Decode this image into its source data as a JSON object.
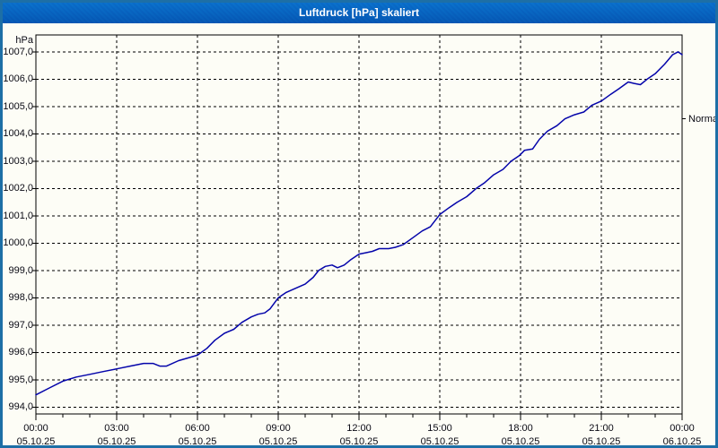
{
  "window": {
    "title": "Luftdruck [hPa] skaliert",
    "colors": {
      "title_bar": "#1d6fa6",
      "title_text": "#ffffff",
      "frame": "#1d6fa6",
      "background": "#fdfdf6",
      "plot_border": "#000000",
      "grid": "#000000"
    }
  },
  "chart_data": {
    "type": "line",
    "title": "Luftdruck [hPa] skaliert",
    "ylabel_unit": "hPa",
    "line_color": "#0404aa",
    "grid": "dashed",
    "ylim": [
      993.75,
      1007.62
    ],
    "xlim_hours": [
      0,
      24
    ],
    "minor_tick_every_hours": 1,
    "y_ticks": [
      {
        "value": 1007.0,
        "label": "1007,0"
      },
      {
        "value": 1006.0,
        "label": "1006,0"
      },
      {
        "value": 1005.0,
        "label": "1005,0"
      },
      {
        "value": 1004.0,
        "label": "1004,0"
      },
      {
        "value": 1003.0,
        "label": "1003,0"
      },
      {
        "value": 1002.0,
        "label": "1002,0"
      },
      {
        "value": 1001.0,
        "label": "1001,0"
      },
      {
        "value": 1000.0,
        "label": "1000,0"
      },
      {
        "value": 999.0,
        "label": "999,0"
      },
      {
        "value": 998.0,
        "label": "998,0"
      },
      {
        "value": 997.0,
        "label": "997,0"
      },
      {
        "value": 996.0,
        "label": "996,0"
      },
      {
        "value": 995.0,
        "label": "995,0"
      },
      {
        "value": 994.0,
        "label": "994,0"
      }
    ],
    "x_ticks": [
      {
        "hour": 0,
        "time": "00:00",
        "date": "05.10.25"
      },
      {
        "hour": 3,
        "time": "03:00",
        "date": "05.10.25"
      },
      {
        "hour": 6,
        "time": "06:00",
        "date": "05.10.25"
      },
      {
        "hour": 9,
        "time": "09:00",
        "date": "05.10.25"
      },
      {
        "hour": 12,
        "time": "12:00",
        "date": "05.10.25"
      },
      {
        "hour": 15,
        "time": "15:00",
        "date": "05.10.25"
      },
      {
        "hour": 18,
        "time": "18:00",
        "date": "05.10.25"
      },
      {
        "hour": 21,
        "time": "21:00",
        "date": "05.10.25"
      },
      {
        "hour": 24,
        "time": "00:00",
        "date": "06.10.25"
      }
    ],
    "annotation": {
      "label": "Normal",
      "value": 1004.55
    },
    "series": [
      {
        "name": "Luftdruck",
        "points": [
          [
            0,
            994.45
          ],
          [
            0.5,
            994.7
          ],
          [
            1,
            994.95
          ],
          [
            1.5,
            995.1
          ],
          [
            2,
            995.2
          ],
          [
            2.5,
            995.3
          ],
          [
            3,
            995.4
          ],
          [
            3.5,
            995.5
          ],
          [
            4,
            995.6
          ],
          [
            4.35,
            995.6
          ],
          [
            4.6,
            995.5
          ],
          [
            4.85,
            995.5
          ],
          [
            5.3,
            995.7
          ],
          [
            5.65,
            995.8
          ],
          [
            6,
            995.9
          ],
          [
            6.35,
            996.15
          ],
          [
            6.65,
            996.45
          ],
          [
            7,
            996.7
          ],
          [
            7.35,
            996.85
          ],
          [
            7.65,
            997.1
          ],
          [
            8,
            997.3
          ],
          [
            8.25,
            997.4
          ],
          [
            8.5,
            997.45
          ],
          [
            8.7,
            997.6
          ],
          [
            9,
            998.0
          ],
          [
            9.3,
            998.2
          ],
          [
            9.65,
            998.35
          ],
          [
            10,
            998.5
          ],
          [
            10.3,
            998.75
          ],
          [
            10.5,
            999.0
          ],
          [
            10.75,
            999.15
          ],
          [
            11,
            999.2
          ],
          [
            11.2,
            999.1
          ],
          [
            11.45,
            999.2
          ],
          [
            11.7,
            999.4
          ],
          [
            12,
            999.6
          ],
          [
            12.25,
            999.65
          ],
          [
            12.5,
            999.7
          ],
          [
            12.75,
            999.8
          ],
          [
            13.1,
            999.8
          ],
          [
            13.35,
            999.85
          ],
          [
            13.65,
            999.95
          ],
          [
            14,
            1000.2
          ],
          [
            14.35,
            1000.45
          ],
          [
            14.65,
            1000.6
          ],
          [
            15,
            1001.05
          ],
          [
            15.35,
            1001.3
          ],
          [
            15.65,
            1001.5
          ],
          [
            16,
            1001.7
          ],
          [
            16.35,
            1002.0
          ],
          [
            16.65,
            1002.2
          ],
          [
            17,
            1002.5
          ],
          [
            17.35,
            1002.7
          ],
          [
            17.65,
            1003.0
          ],
          [
            17.95,
            1003.2
          ],
          [
            18.15,
            1003.4
          ],
          [
            18.45,
            1003.45
          ],
          [
            18.7,
            1003.8
          ],
          [
            19,
            1004.1
          ],
          [
            19.35,
            1004.3
          ],
          [
            19.65,
            1004.55
          ],
          [
            20,
            1004.7
          ],
          [
            20.35,
            1004.8
          ],
          [
            20.65,
            1005.05
          ],
          [
            21,
            1005.2
          ],
          [
            21.35,
            1005.45
          ],
          [
            21.65,
            1005.65
          ],
          [
            22,
            1005.9
          ],
          [
            22.2,
            1005.85
          ],
          [
            22.45,
            1005.8
          ],
          [
            22.7,
            1006.0
          ],
          [
            23,
            1006.2
          ],
          [
            23.35,
            1006.55
          ],
          [
            23.65,
            1006.9
          ],
          [
            23.85,
            1007.0
          ],
          [
            24,
            1006.9
          ]
        ]
      }
    ]
  }
}
